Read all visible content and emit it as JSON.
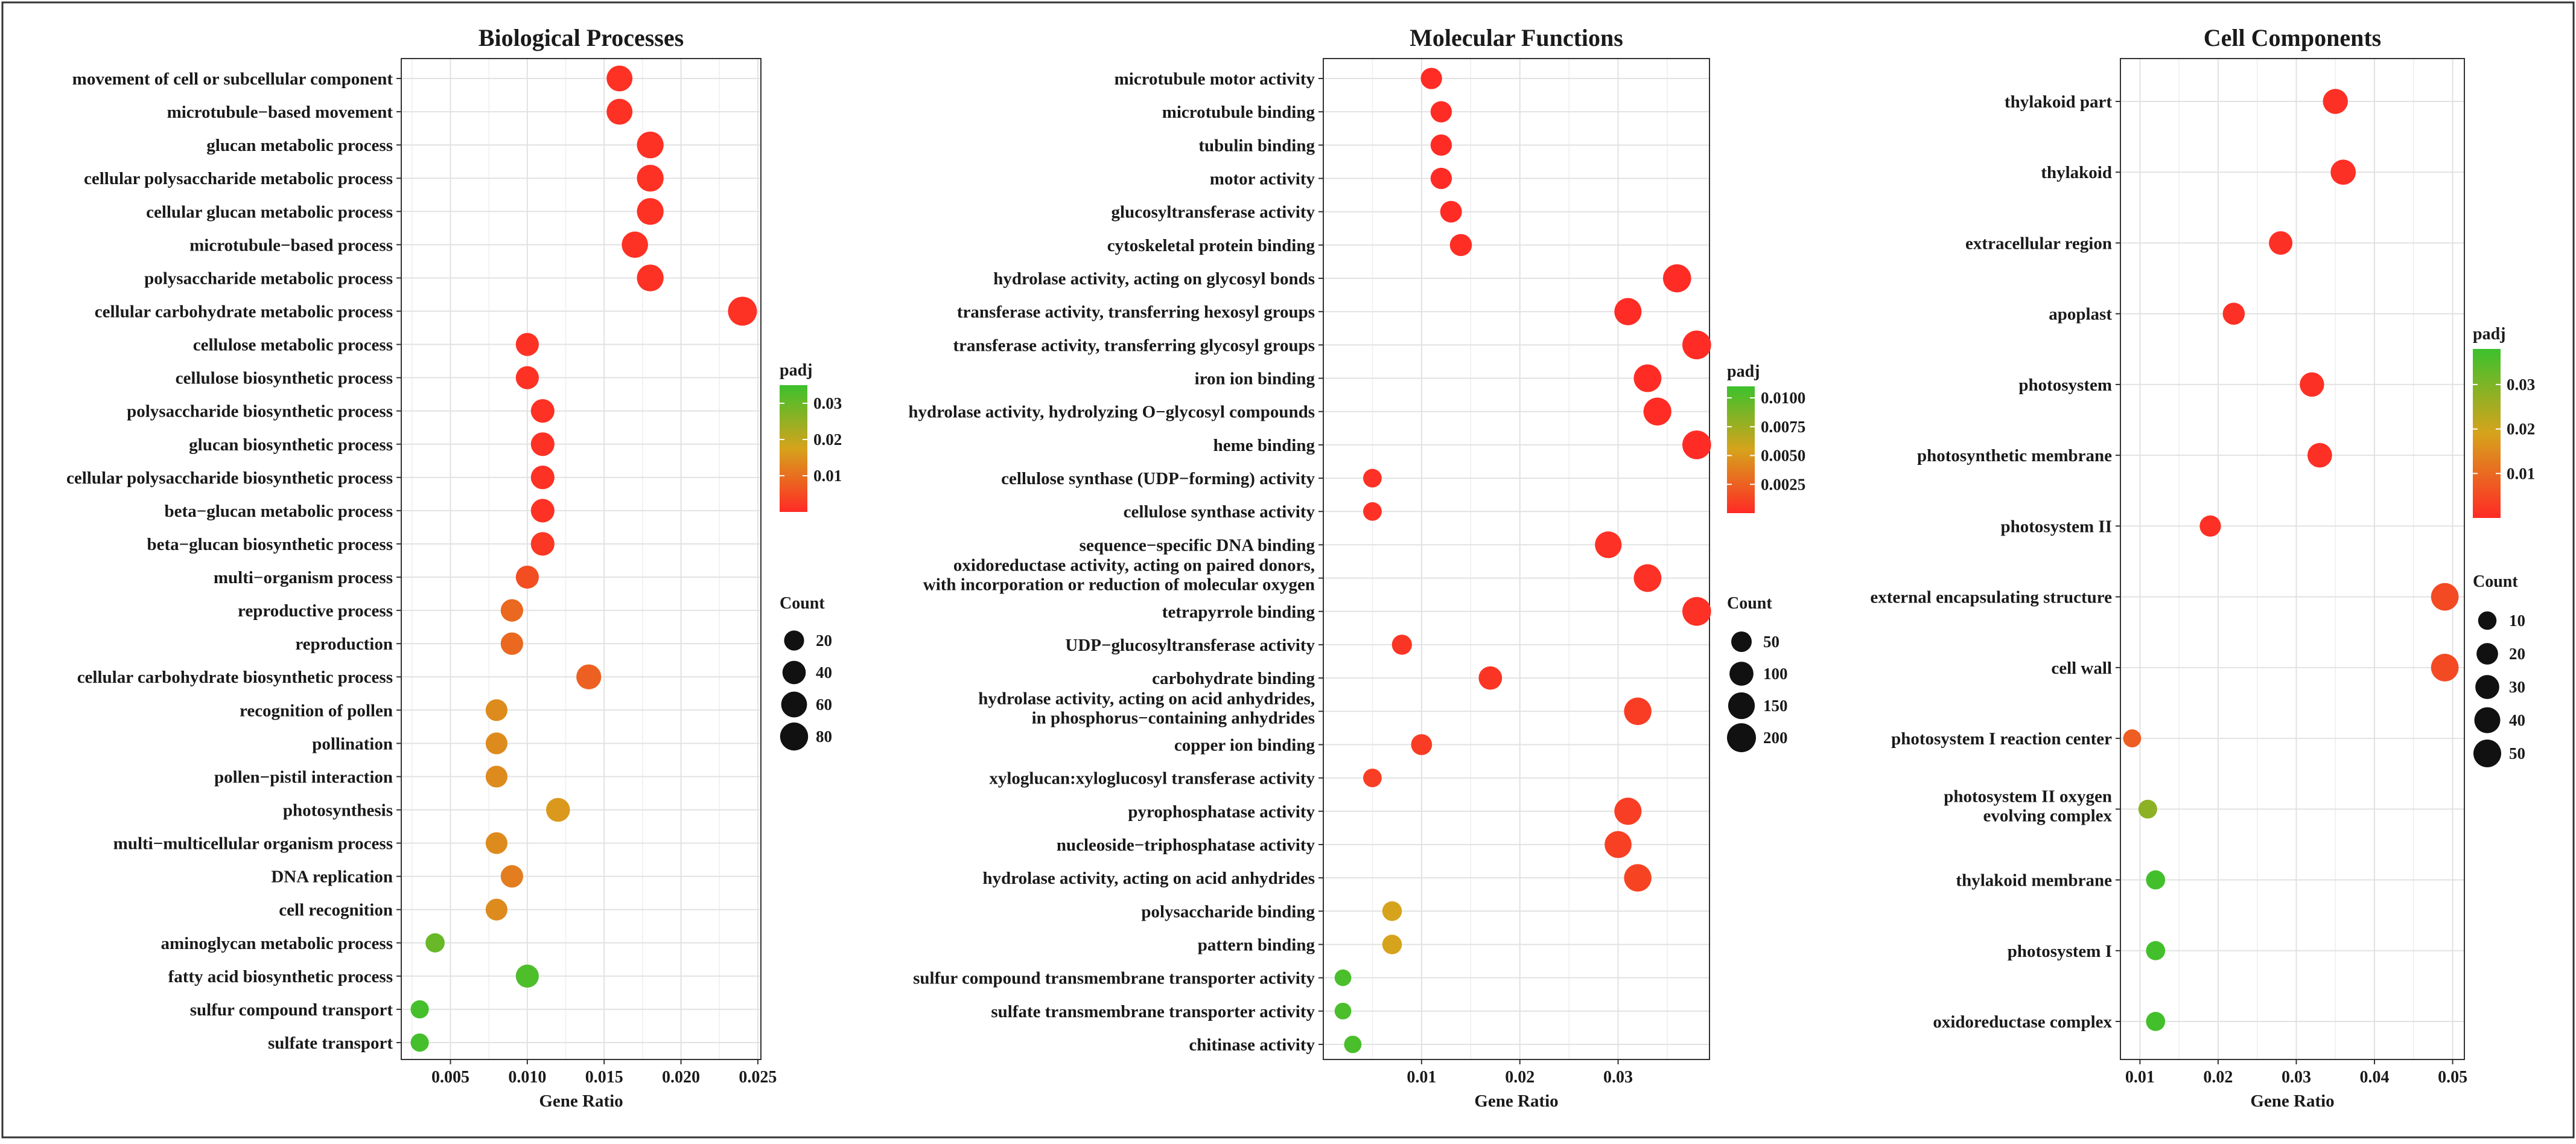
{
  "chart_data": [
    {
      "type": "scatter",
      "title": "Biological Processes",
      "xlabel": "Gene Ratio",
      "xlim": [
        0.0018,
        0.0252
      ],
      "xticks": [
        0.005,
        0.01,
        0.015,
        0.02,
        0.025
      ],
      "xtick_labels": [
        "0.005",
        "0.010",
        "0.015",
        "0.020",
        "0.025"
      ],
      "grid": true,
      "categories": [
        "movement of cell or subcellular component",
        "microtubule−based movement",
        "glucan metabolic process",
        "cellular polysaccharide metabolic process",
        "cellular glucan metabolic process",
        "microtubule−based process",
        "polysaccharide metabolic process",
        "cellular carbohydrate metabolic process",
        "cellulose metabolic process",
        "cellulose biosynthetic process",
        "polysaccharide biosynthetic process",
        "glucan biosynthetic process",
        "cellular polysaccharide biosynthetic process",
        "beta−glucan metabolic process",
        "beta−glucan biosynthetic process",
        "multi−organism process",
        "reproductive process",
        "reproduction",
        "cellular carbohydrate biosynthetic process",
        "recognition of pollen",
        "pollination",
        "pollen−pistil interaction",
        "photosynthesis",
        "multi−multicellular organism process",
        "DNA replication",
        "cell recognition",
        "aminoglycan metabolic process",
        "fatty acid biosynthetic process",
        "sulfur compound transport",
        "sulfate transport"
      ],
      "gene_ratio": [
        0.016,
        0.016,
        0.018,
        0.018,
        0.018,
        0.017,
        0.018,
        0.024,
        0.01,
        0.01,
        0.011,
        0.011,
        0.011,
        0.011,
        0.011,
        0.01,
        0.009,
        0.009,
        0.014,
        0.008,
        0.008,
        0.008,
        0.012,
        0.008,
        0.009,
        0.008,
        0.004,
        0.01,
        0.003,
        0.003
      ],
      "count": [
        60,
        60,
        68,
        68,
        68,
        64,
        68,
        90,
        38,
        38,
        42,
        42,
        42,
        42,
        42,
        38,
        34,
        34,
        52,
        30,
        30,
        30,
        44,
        30,
        34,
        30,
        16,
        38,
        12,
        12
      ],
      "padj": [
        0.001,
        0.001,
        0.001,
        0.001,
        0.001,
        0.001,
        0.001,
        0.001,
        0.001,
        0.001,
        0.001,
        0.001,
        0.001,
        0.001,
        0.002,
        0.005,
        0.009,
        0.009,
        0.008,
        0.014,
        0.014,
        0.014,
        0.016,
        0.014,
        0.012,
        0.014,
        0.03,
        0.033,
        0.034,
        0.034
      ],
      "legend_color": {
        "title": "padj",
        "range": [
          0.0,
          0.035
        ],
        "ticks": [
          0.01,
          0.02,
          0.03
        ],
        "tick_labels": [
          "0.01",
          "0.02",
          "0.03"
        ],
        "low_color": "#ff2a25",
        "mid_color": "#d6a31c",
        "high_color": "#3cc12d"
      },
      "legend_size": {
        "title": "Count",
        "values": [
          20,
          40,
          60,
          80
        ],
        "labels": [
          "20",
          "40",
          "60",
          "80"
        ],
        "max": 90
      },
      "legend_placement": "right"
    },
    {
      "type": "scatter",
      "title": "Molecular Functions",
      "xlabel": "Gene Ratio",
      "xlim": [
        0.0,
        0.0393
      ],
      "xticks": [
        0.01,
        0.02,
        0.03
      ],
      "xtick_labels": [
        "0.01",
        "0.02",
        "0.03"
      ],
      "grid": true,
      "categories": [
        "microtubule motor activity",
        "microtubule binding",
        "tubulin binding",
        "motor activity",
        "glucosyltransferase activity",
        "cytoskeletal protein binding",
        "hydrolase activity, acting on glycosyl bonds",
        "transferase activity, transferring hexosyl groups",
        "transferase activity, transferring glycosyl groups",
        "iron ion binding",
        "hydrolase activity, hydrolyzing O−glycosyl compounds",
        "heme binding",
        "cellulose synthase (UDP−forming) activity",
        "cellulose synthase activity",
        "sequence−specific DNA binding",
        "oxidoreductase activity, acting on paired donors,\nwith incorporation or reduction of molecular oxygen",
        "tetrapyrrole binding",
        "UDP−glucosyltransferase activity",
        "carbohydrate binding",
        "hydrolase activity, acting on acid anhydrides,\nin phosphorus−containing anhydrides",
        "copper ion binding",
        "xyloglucan:xyloglucosyl transferase activity",
        "pyrophosphatase activity",
        "nucleoside−triphosphatase activity",
        "hydrolase activity, acting on acid anhydrides",
        "polysaccharide binding",
        "pattern binding",
        "sulfur compound transmembrane transporter activity",
        "sulfate transmembrane transporter activity",
        "chitinase activity"
      ],
      "gene_ratio": [
        0.011,
        0.012,
        0.012,
        0.012,
        0.013,
        0.014,
        0.036,
        0.031,
        0.038,
        0.033,
        0.034,
        0.038,
        0.005,
        0.005,
        0.029,
        0.033,
        0.038,
        0.008,
        0.017,
        0.032,
        0.01,
        0.005,
        0.031,
        0.03,
        0.032,
        0.007,
        0.007,
        0.002,
        0.002,
        0.003
      ],
      "count": [
        60,
        60,
        60,
        60,
        65,
        70,
        180,
        160,
        195,
        170,
        175,
        195,
        30,
        30,
        150,
        170,
        195,
        45,
        90,
        165,
        55,
        30,
        160,
        155,
        165,
        40,
        40,
        15,
        15,
        20
      ],
      "padj": [
        0.0001,
        0.0001,
        0.0001,
        0.0001,
        0.0001,
        0.0002,
        0.0001,
        0.0001,
        0.0001,
        0.0001,
        0.0001,
        0.0001,
        0.0003,
        0.0003,
        0.0003,
        0.0003,
        0.0003,
        0.0005,
        0.0005,
        0.0008,
        0.0008,
        0.0009,
        0.0009,
        0.001,
        0.0012,
        0.0055,
        0.0055,
        0.0105,
        0.0105,
        0.0105
      ],
      "legend_color": {
        "title": "padj",
        "range": [
          0.0,
          0.011
        ],
        "ticks": [
          0.0025,
          0.005,
          0.0075,
          0.01
        ],
        "tick_labels": [
          "0.0025",
          "0.0050",
          "0.0075",
          "0.0100"
        ],
        "low_color": "#ff2a25",
        "mid_color": "#d6a31c",
        "high_color": "#3cc12d"
      },
      "legend_size": {
        "title": "Count",
        "values": [
          50,
          100,
          150,
          200
        ],
        "labels": [
          "50",
          "100",
          "150",
          "200"
        ],
        "max": 200
      },
      "legend_placement": "right"
    },
    {
      "type": "scatter",
      "title": "Cell Components",
      "xlabel": "Gene Ratio",
      "xlim": [
        0.0075,
        0.0515
      ],
      "xticks": [
        0.01,
        0.02,
        0.03,
        0.04,
        0.05
      ],
      "xtick_labels": [
        "0.01",
        "0.02",
        "0.03",
        "0.04",
        "0.05"
      ],
      "grid": true,
      "categories": [
        "thylakoid part",
        "thylakoid",
        "extracellular region",
        "apoplast",
        "photosystem",
        "photosynthetic membrane",
        "photosystem II",
        "external encapsulating structure",
        "cell wall",
        "photosystem I reaction center",
        "photosystem II oxygen\nevolving complex",
        "thylakoid membrane",
        "photosystem I",
        "oxidoreductase complex"
      ],
      "gene_ratio": [
        0.035,
        0.036,
        0.028,
        0.022,
        0.032,
        0.033,
        0.019,
        0.049,
        0.049,
        0.009,
        0.011,
        0.012,
        0.012,
        0.012
      ],
      "count": [
        35,
        36,
        28,
        22,
        32,
        33,
        19,
        49,
        49,
        9,
        11,
        12,
        12,
        12
      ],
      "padj": [
        0.001,
        0.001,
        0.001,
        0.001,
        0.001,
        0.001,
        0.001,
        0.005,
        0.005,
        0.008,
        0.028,
        0.037,
        0.037,
        0.037
      ],
      "legend_color": {
        "title": "padj",
        "range": [
          0.0,
          0.038
        ],
        "ticks": [
          0.01,
          0.02,
          0.03
        ],
        "tick_labels": [
          "0.01",
          "0.02",
          "0.03"
        ],
        "low_color": "#ff2a25",
        "mid_color": "#d6a31c",
        "high_color": "#3cc12d"
      },
      "legend_size": {
        "title": "Count",
        "values": [
          10,
          20,
          30,
          40,
          50
        ],
        "labels": [
          "10",
          "20",
          "30",
          "40",
          "50"
        ],
        "max": 50
      },
      "legend_placement": "right"
    }
  ]
}
